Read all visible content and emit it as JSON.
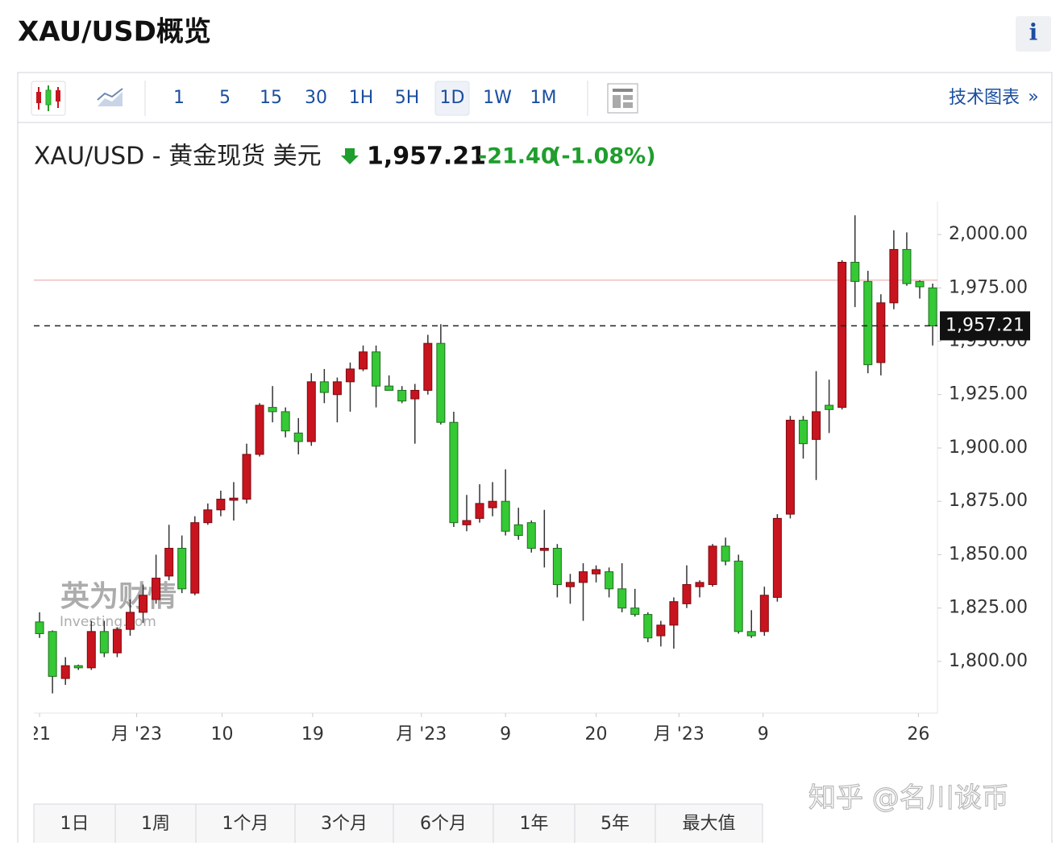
{
  "header": {
    "title": "XAU/USD概览",
    "info": "i"
  },
  "toolbar": {
    "intervals": [
      "1",
      "5",
      "15",
      "30",
      "1H",
      "5H",
      "1D",
      "1W",
      "1M"
    ],
    "active": "1D",
    "tech_chart": "技术图表",
    "more": "»"
  },
  "quote": {
    "name": "XAU/USD - 黄金现货 美元",
    "price": "1,957.21",
    "change": "-21.40",
    "change_pct": "(-1.08%)"
  },
  "chart_data": {
    "type": "candlestick",
    "up_color": "#c8141e",
    "down_color": "#35c935",
    "open": [
      1818.5,
      1814,
      1792,
      1798,
      1797,
      1814,
      1804,
      1815,
      1823,
      1829,
      1840,
      1853,
      1832,
      1865,
      1871,
      1875.5,
      1876,
      1897,
      1919,
      1917,
      1907,
      1903,
      1931,
      1925,
      1931,
      1937,
      1945,
      1929,
      1927,
      1923,
      1927,
      1949,
      1912,
      1864,
      1867,
      1872,
      1875,
      1864,
      1865,
      1852,
      1853,
      1835,
      1837,
      1841,
      1842,
      1834,
      1825,
      1822,
      1812,
      1817,
      1827,
      1835,
      1836,
      1854,
      1847,
      1814,
      1814,
      1830,
      1869,
      1913,
      1904,
      1920,
      1919,
      1987,
      1978,
      1940,
      1968,
      1993,
      1978,
      1975
    ],
    "high": [
      1823,
      1814.5,
      1802,
      1798.5,
      1819,
      1819,
      1816,
      1829,
      1836,
      1850,
      1864,
      1859,
      1868,
      1874,
      1880,
      1884,
      1902,
      1921,
      1929,
      1919,
      1914,
      1935,
      1937,
      1933,
      1940,
      1948,
      1948,
      1934,
      1929,
      1930,
      1953,
      1958,
      1917,
      1878,
      1883,
      1884,
      1890,
      1872,
      1866,
      1871,
      1855,
      1841,
      1846,
      1845,
      1844,
      1846,
      1834,
      1823,
      1819,
      1830,
      1845,
      1838,
      1855,
      1858,
      1850,
      1824,
      1835,
      1869,
      1915,
      1915,
      1936,
      1932,
      1988,
      2009,
      1983,
      1972,
      2002,
      2001,
      1978.5,
      1977
    ],
    "low": [
      1811,
      1785,
      1789,
      1796,
      1796,
      1802,
      1802,
      1812,
      1818,
      1827,
      1838,
      1832,
      1831,
      1864,
      1868,
      1866,
      1874,
      1896,
      1912,
      1905,
      1897,
      1901,
      1921,
      1912,
      1917,
      1936,
      1919,
      1927,
      1921,
      1902,
      1925,
      1911,
      1863,
      1861,
      1865,
      1868,
      1859,
      1857,
      1851,
      1844,
      1830,
      1827,
      1819,
      1837,
      1830,
      1823,
      1821,
      1809,
      1807,
      1806,
      1825,
      1830,
      1835,
      1845,
      1813,
      1811,
      1812,
      1828,
      1867,
      1895,
      1885,
      1907,
      1918,
      1966,
      1935,
      1934,
      1965,
      1976,
      1970,
      1948
    ],
    "close": [
      1813,
      1793,
      1798,
      1797,
      1814,
      1804,
      1815,
      1823,
      1831,
      1839,
      1853,
      1834,
      1865,
      1871,
      1876,
      1876.5,
      1897,
      1920,
      1917,
      1908,
      1903,
      1931,
      1926,
      1931,
      1937,
      1945,
      1929,
      1927,
      1922,
      1927,
      1949,
      1912,
      1865,
      1866,
      1874,
      1875,
      1861,
      1859,
      1853,
      1853,
      1836,
      1837,
      1842,
      1843,
      1834,
      1825,
      1822,
      1811,
      1817,
      1828,
      1836,
      1837,
      1854,
      1847,
      1814,
      1812,
      1831,
      1867,
      1913,
      1902,
      1917,
      1918,
      1987,
      1978,
      1939,
      1968,
      1993,
      1977,
      1975.5,
      1957.21
    ],
    "xlim": [
      -0.44,
      69.37
    ],
    "xticks": [
      {
        "value": 0,
        "label": "21"
      },
      {
        "value": 7.5,
        "label": "月 '23"
      },
      {
        "value": 14.1,
        "label": "10"
      },
      {
        "value": 21.1,
        "label": "19"
      },
      {
        "value": 29.5,
        "label": "月 '23"
      },
      {
        "value": 36,
        "label": "9"
      },
      {
        "value": 43,
        "label": "20"
      },
      {
        "value": 49.4,
        "label": "月 '23"
      },
      {
        "value": 55.9,
        "label": "9"
      },
      {
        "value": 67.9,
        "label": "26"
      }
    ],
    "ylim": [
      1775.8,
      2015.5
    ],
    "yticks": [
      {
        "value": 1800,
        "label": "1,800.00"
      },
      {
        "value": 1825,
        "label": "1,825.00"
      },
      {
        "value": 1850,
        "label": "1,850.00"
      },
      {
        "value": 1875,
        "label": "1,875.00"
      },
      {
        "value": 1900,
        "label": "1,900.00"
      },
      {
        "value": 1925,
        "label": "1,925.00"
      },
      {
        "value": 1950,
        "label": "1,950.00"
      },
      {
        "value": 1975,
        "label": "1,975.00"
      },
      {
        "value": 2000,
        "label": "2,000.00"
      }
    ],
    "reference_line": 1978.6,
    "reference_color": "#e8a0a0",
    "last_price": {
      "value": 1957.21,
      "label": "1,957.21"
    },
    "watermark": [
      "英为财情",
      "Investing.com"
    ]
  },
  "ranges": [
    "1日",
    "1周",
    "1个月",
    "3个月",
    "6个月",
    "1年",
    "5年",
    "最大值"
  ],
  "watermark": "知乎 @名川谈币"
}
